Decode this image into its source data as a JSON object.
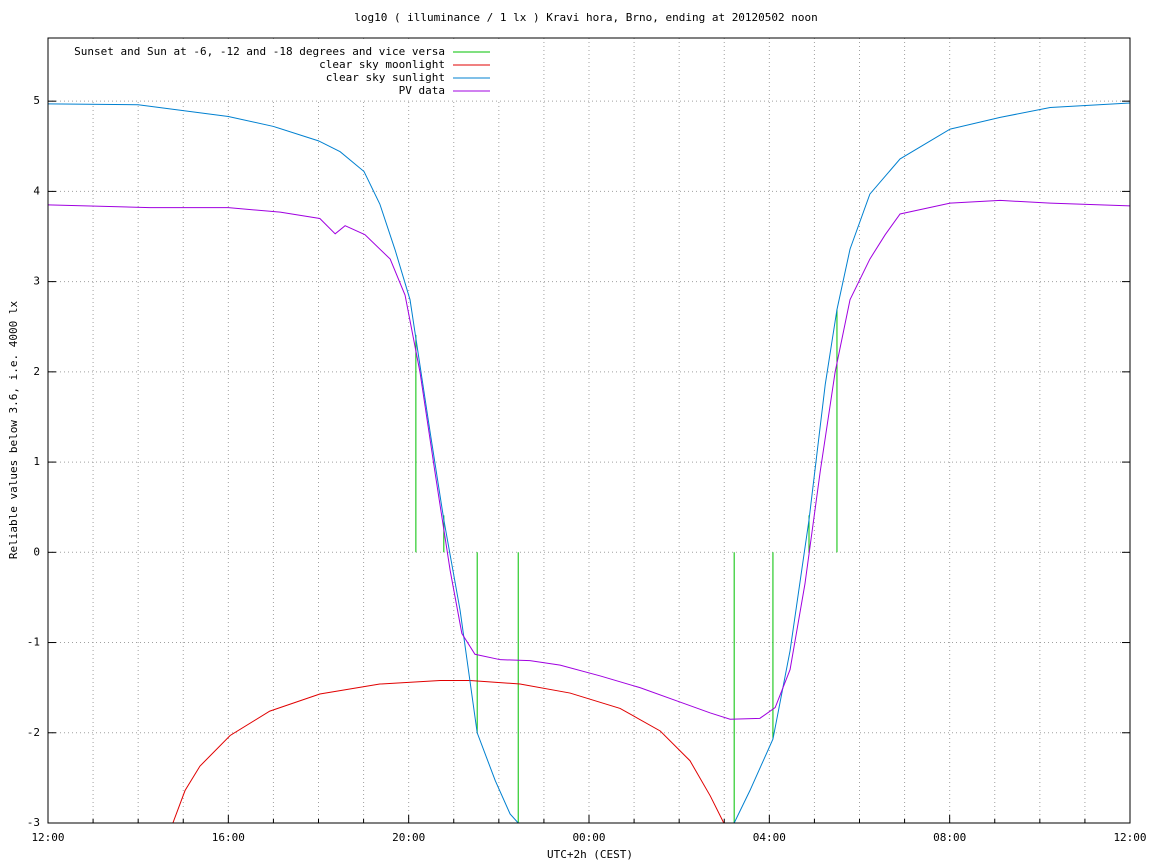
{
  "chart_data": {
    "type": "line",
    "title": "log10 ( illuminance / 1 lx ) Kravi hora, Brno, ending at 20120502 noon",
    "x_label": "UTC+2h (CEST)",
    "y_label": "Reliable values below 3.6, i.e. 4000 lx",
    "xlim": [
      0,
      24
    ],
    "ylim": [
      -3,
      5.7
    ],
    "xticks": [
      {
        "value": 0,
        "label": "12:00"
      },
      {
        "value": 4,
        "label": "16:00"
      },
      {
        "value": 8,
        "label": "20:00"
      },
      {
        "value": 12,
        "label": "00:00"
      },
      {
        "value": 16,
        "label": "04:00"
      },
      {
        "value": 20,
        "label": "08:00"
      },
      {
        "value": 24,
        "label": "12:00"
      }
    ],
    "xminorticks": [
      1,
      2,
      3,
      5,
      6,
      7,
      9,
      10,
      11,
      13,
      14,
      15,
      17,
      18,
      19,
      21,
      22,
      23
    ],
    "yticks": [
      -3,
      -2,
      -1,
      0,
      1,
      2,
      3,
      4,
      5
    ],
    "grid": true,
    "legend": "top-left",
    "series": [
      {
        "name": "Sunset and Sun at -6, -12 and -18 degrees and vice versa",
        "color": "#00c000",
        "x": [
          8.16,
          8.16,
          8.16,
          8.78,
          8.78,
          8.78,
          9.52,
          9.52,
          9.52,
          10.43,
          10.43,
          10.43,
          15.22,
          15.22,
          15.22,
          16.08,
          16.08,
          16.08,
          16.88,
          16.88,
          16.88,
          17.5,
          17.5
        ],
        "values": [
          0,
          2.41,
          null,
          0,
          0.41,
          null,
          0,
          -2.0,
          null,
          0,
          -3,
          null,
          0,
          -3,
          null,
          0,
          -2.07,
          null,
          0,
          0.41,
          null,
          0,
          2.69
        ]
      },
      {
        "name": "clear sky moonlight",
        "color": "#e00000",
        "x": [
          2.77,
          3.04,
          3.37,
          4.04,
          4.92,
          6.03,
          7.36,
          8.7,
          9.36,
          10.47,
          11.58,
          12.69,
          13.58,
          14.24,
          14.69,
          14.99
        ],
        "values": [
          -3,
          -2.64,
          -2.37,
          -2.03,
          -1.76,
          -1.57,
          -1.46,
          -1.42,
          -1.42,
          -1.46,
          -1.56,
          -1.73,
          -1.98,
          -2.31,
          -2.7,
          -3
        ]
      },
      {
        "name": "clear sky sunlight",
        "color": "#0080d0",
        "x": [
          0,
          2,
          4,
          5,
          6,
          6.48,
          7.01,
          7.36,
          7.7,
          8.03,
          8.47,
          8.78,
          9.14,
          9.52,
          9.92,
          10.25,
          10.43,
          15.22,
          15.57,
          16.08,
          16.46,
          16.88,
          17.24,
          17.5,
          17.79,
          18.23,
          18.9,
          20.01,
          21.12,
          22.23,
          24
        ],
        "values": [
          4.97,
          4.96,
          4.83,
          4.72,
          4.56,
          4.44,
          4.22,
          3.86,
          3.35,
          2.8,
          1.35,
          0.36,
          -0.64,
          -2.0,
          -2.53,
          -2.9,
          -3,
          -3,
          -2.64,
          -2.07,
          -1.09,
          0.36,
          1.86,
          2.69,
          3.36,
          3.97,
          4.36,
          4.69,
          4.82,
          4.93,
          4.98
        ]
      },
      {
        "name": "PV data",
        "color": "#a000e0",
        "x": [
          0,
          2.26,
          4,
          5.15,
          6.03,
          6.37,
          6.59,
          7.03,
          7.59,
          7.92,
          8.25,
          8.58,
          8.92,
          9.18,
          9.47,
          10.03,
          10.69,
          11.36,
          12.25,
          13.13,
          14.02,
          14.69,
          15.13,
          15.79,
          16.13,
          16.46,
          16.79,
          17.13,
          17.46,
          17.79,
          18.23,
          18.57,
          18.9,
          20.01,
          21.12,
          22.23,
          24
        ],
        "values": [
          3.85,
          3.82,
          3.82,
          3.77,
          3.7,
          3.53,
          3.62,
          3.52,
          3.25,
          2.85,
          2.0,
          0.9,
          -0.2,
          -0.9,
          -1.13,
          -1.19,
          -1.2,
          -1.25,
          -1.37,
          -1.5,
          -1.66,
          -1.78,
          -1.85,
          -1.84,
          -1.72,
          -1.3,
          -0.35,
          0.9,
          2.0,
          2.8,
          3.25,
          3.52,
          3.75,
          3.87,
          3.9,
          3.87,
          3.84
        ]
      }
    ]
  }
}
